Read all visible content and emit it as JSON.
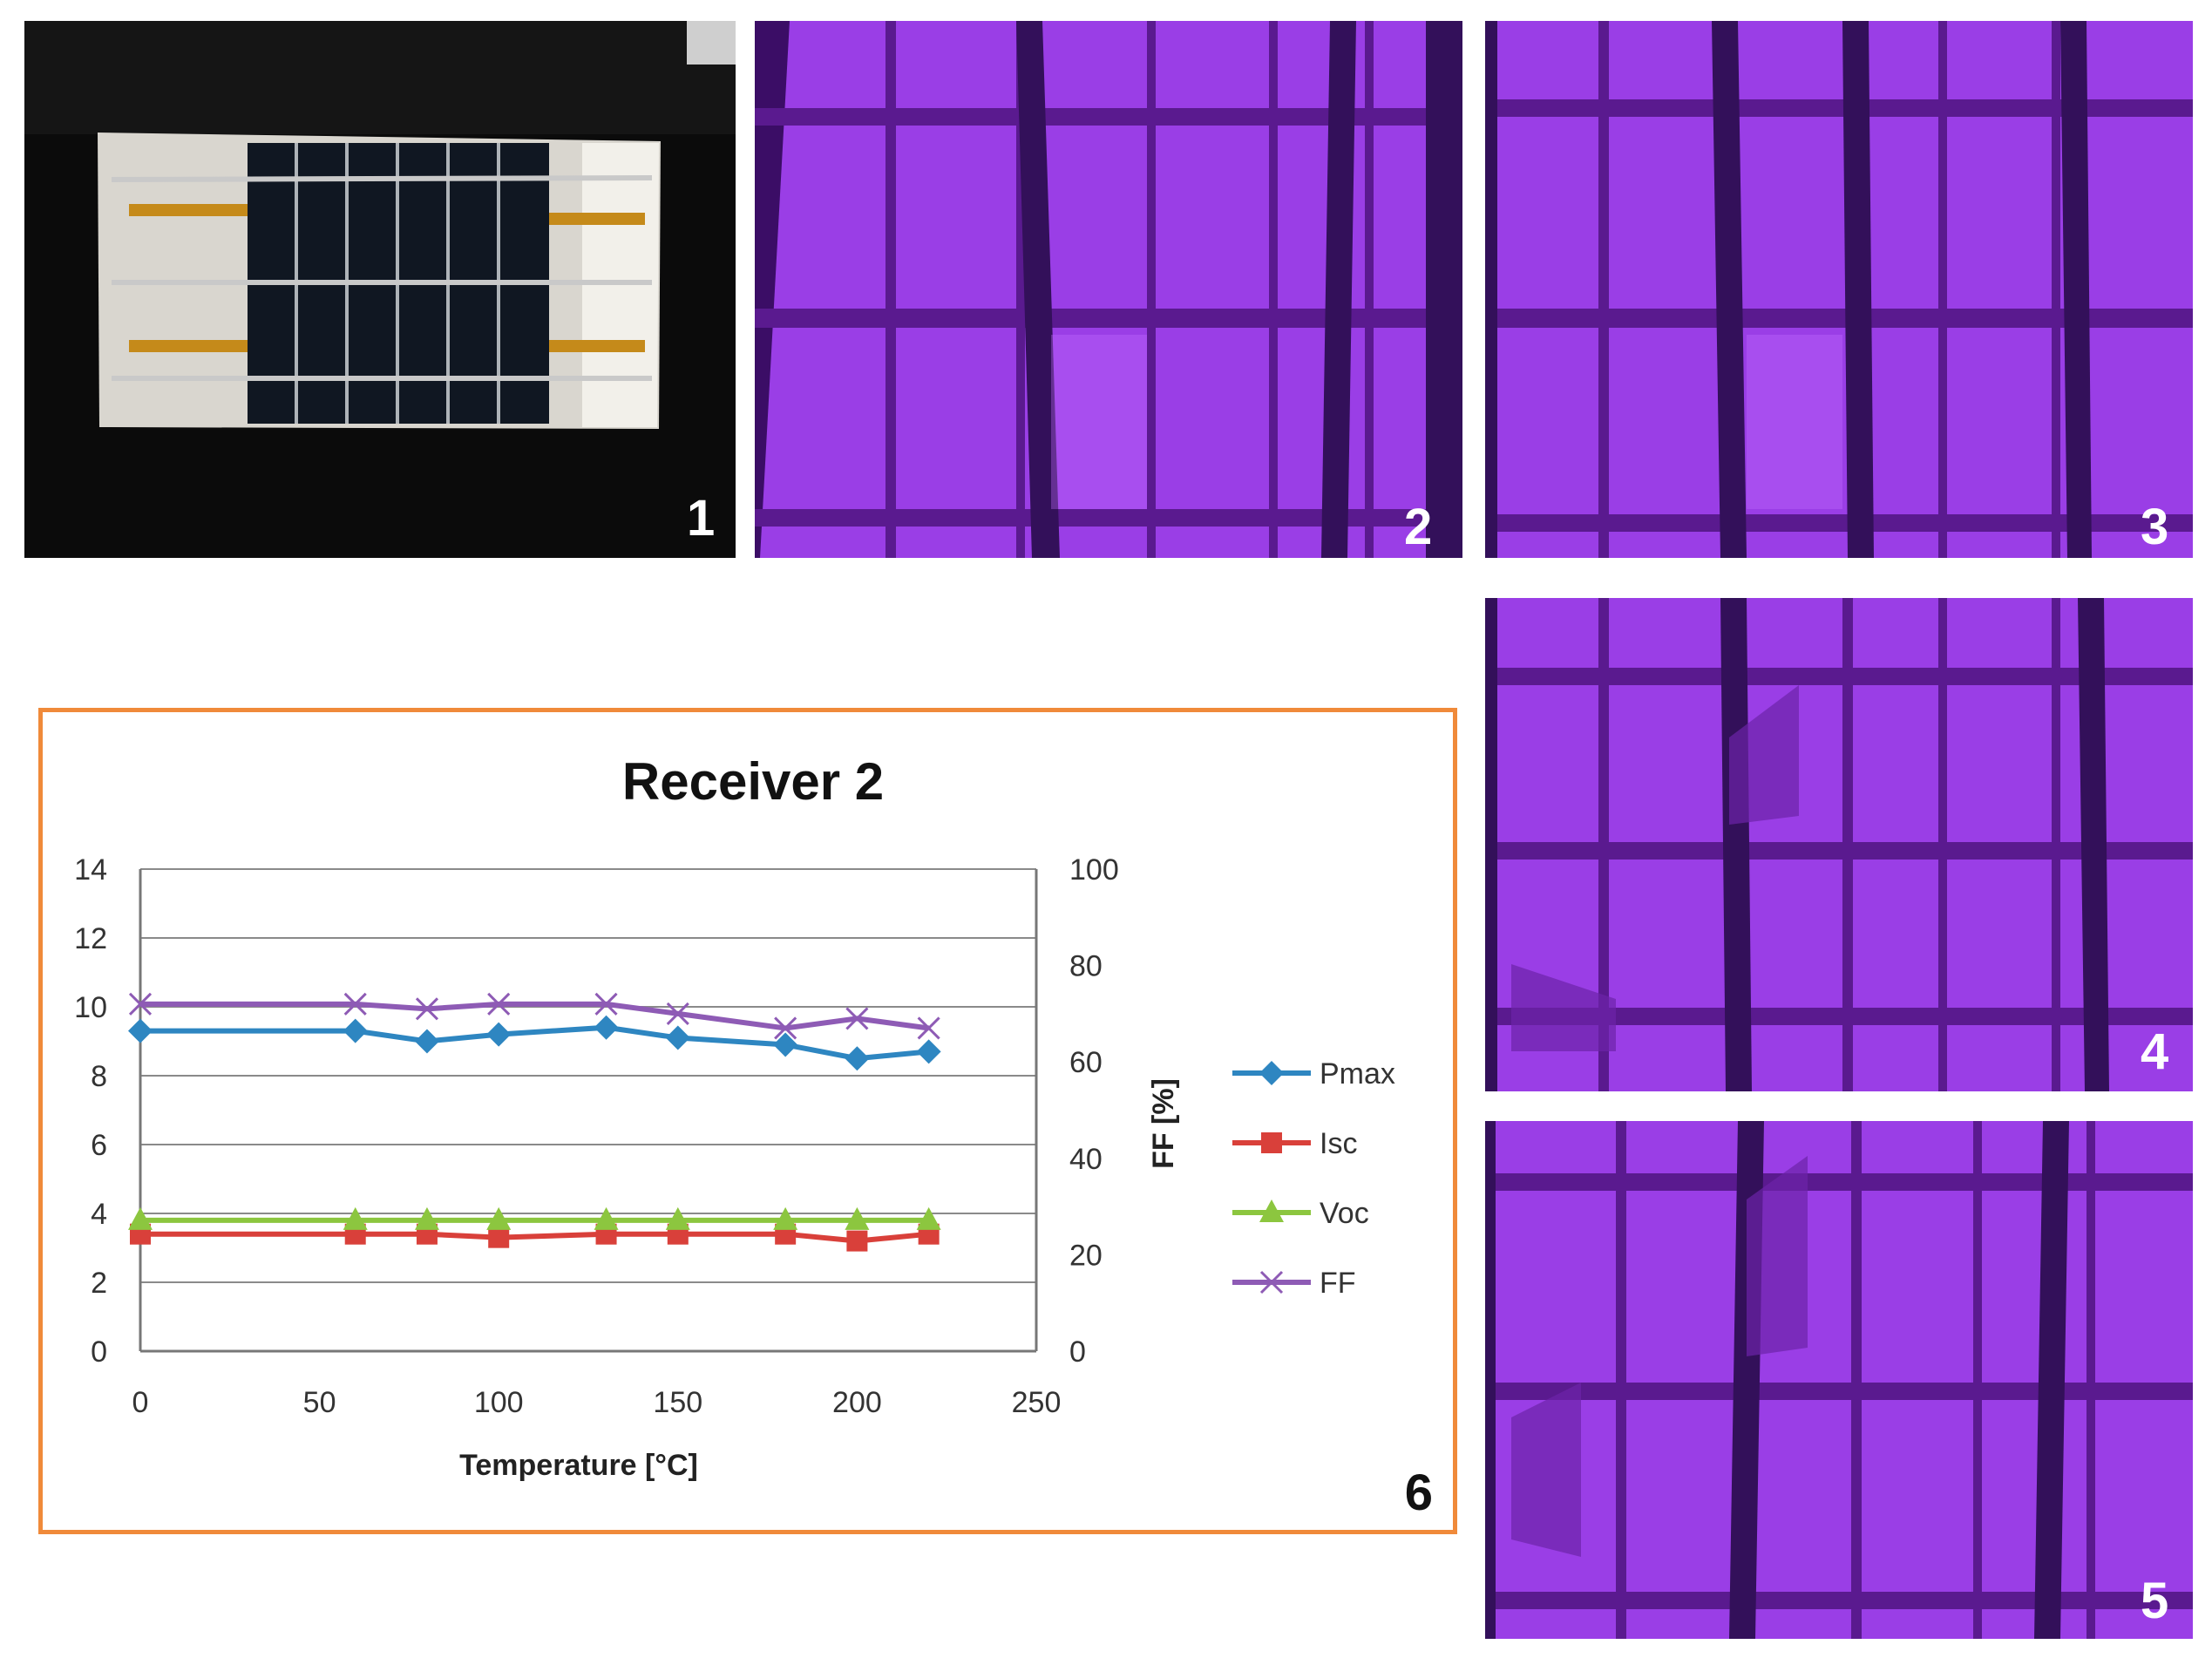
{
  "figure": {
    "panels": [
      {
        "label": "1",
        "desc_icon": "photo-receiver-module"
      },
      {
        "label": "2",
        "desc_icon": "el-image"
      },
      {
        "label": "3",
        "desc_icon": "el-image"
      },
      {
        "label": "4",
        "desc_icon": "el-image"
      },
      {
        "label": "5",
        "desc_icon": "el-image"
      },
      {
        "label": "6",
        "desc_icon": "chart"
      }
    ],
    "colors": {
      "frame_border": "#f08a3a",
      "el_background": "#9a3ee6",
      "el_dark": "#5a1a8f",
      "photo_background": "#0b0b0b"
    }
  },
  "chart_data": {
    "type": "line",
    "title": "Receiver 2",
    "xlabel": "Temperature [°C]",
    "ylabel": "",
    "y2label": "FF [%]",
    "xlim": [
      0,
      250
    ],
    "ylim": [
      0,
      14
    ],
    "y2lim": [
      0,
      100
    ],
    "xticks": [
      "0",
      "50",
      "100",
      "150",
      "200",
      "250"
    ],
    "yticks": [
      "0",
      "2",
      "4",
      "6",
      "8",
      "10",
      "12",
      "14"
    ],
    "y2ticks": [
      "0",
      "20",
      "40",
      "60",
      "80",
      "100"
    ],
    "grid": true,
    "legend_position": "right",
    "x": [
      0,
      60,
      80,
      100,
      130,
      150,
      180,
      200,
      220
    ],
    "series": [
      {
        "name": "Pmax",
        "axis": "left",
        "color": "#2e86c1",
        "marker": "diamond",
        "values": [
          9.3,
          9.3,
          9.0,
          9.2,
          9.4,
          9.1,
          8.9,
          8.5,
          8.7
        ]
      },
      {
        "name": "Isc",
        "axis": "left",
        "color": "#d9403a",
        "marker": "square",
        "values": [
          3.4,
          3.4,
          3.4,
          3.3,
          3.4,
          3.4,
          3.4,
          3.2,
          3.4
        ]
      },
      {
        "name": "Voc",
        "axis": "left",
        "color": "#8cc63f",
        "marker": "triangle",
        "values": [
          3.8,
          3.8,
          3.8,
          3.8,
          3.8,
          3.8,
          3.8,
          3.8,
          3.8
        ]
      },
      {
        "name": "FF",
        "axis": "right",
        "color": "#8e5bb5",
        "marker": "x",
        "values": [
          72,
          72,
          71,
          72,
          72,
          70,
          67,
          69,
          67
        ]
      }
    ]
  }
}
